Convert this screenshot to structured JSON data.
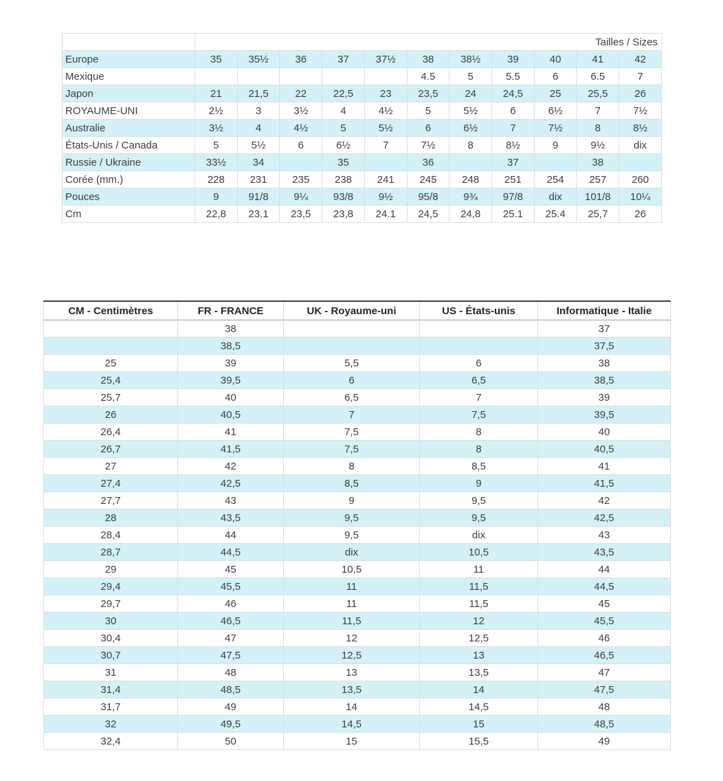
{
  "colors": {
    "stripe": "#d3f1f7",
    "grid": "#d9dfe0",
    "header_top_border": "#414141",
    "header_bottom_border": "#9e9e9e",
    "text": "#3d3d3d",
    "header_text": "#252525"
  },
  "top_table": {
    "title": "Tailles / Sizes",
    "rows": [
      {
        "label": "Europe",
        "values": [
          "35",
          "35½",
          "36",
          "37",
          "37½",
          "38",
          "38½",
          "39",
          "40",
          "41",
          "42"
        ]
      },
      {
        "label": "Mexique",
        "values": [
          "",
          "",
          "",
          "",
          "",
          "4.5",
          "5",
          "5.5",
          "6",
          "6.5",
          "7"
        ]
      },
      {
        "label": "Japon",
        "values": [
          "21",
          "21,5",
          "22",
          "22,5",
          "23",
          "23,5",
          "24",
          "24,5",
          "25",
          "25,5",
          "26"
        ]
      },
      {
        "label": "ROYAUME-UNI",
        "values": [
          "2½",
          "3",
          "3½",
          "4",
          "4½",
          "5",
          "5½",
          "6",
          "6½",
          "7",
          "7½"
        ]
      },
      {
        "label": "Australie",
        "values": [
          "3½",
          "4",
          "4½",
          "5",
          "5½",
          "6",
          "6½",
          "7",
          "7½",
          "8",
          "8½"
        ]
      },
      {
        "label": "États-Unis / Canada",
        "values": [
          "5",
          "5½",
          "6",
          "6½",
          "7",
          "7½",
          "8",
          "8½",
          "9",
          "9½",
          "dix"
        ]
      },
      {
        "label": "Russie / Ukraine",
        "values": [
          "33½",
          "34",
          "",
          "35",
          "",
          "36",
          "",
          "37",
          "",
          "38",
          ""
        ]
      },
      {
        "label": "Corée (mm.)",
        "values": [
          "228",
          "231",
          "235",
          "238",
          "241",
          "245",
          "248",
          "251",
          "254",
          "257",
          "260"
        ]
      },
      {
        "label": "Pouces",
        "values": [
          "9",
          "91/8",
          "9¼",
          "93/8",
          "9½",
          "95/8",
          "9¾",
          "97/8",
          "dix",
          "101/8",
          "10¼"
        ]
      },
      {
        "label": "Cm",
        "values": [
          "22,8",
          "23.1",
          "23,5",
          "23,8",
          "24.1",
          "24,5",
          "24,8",
          "25.1",
          "25.4",
          "25,7",
          "26"
        ]
      }
    ]
  },
  "bottom_table": {
    "headers": [
      "CM - Centimètres",
      "FR - FRANCE",
      "UK - Royaume-uni",
      "US - États-unis",
      "Informatique - Italie"
    ],
    "rows": [
      [
        "",
        "38",
        "",
        "",
        "37"
      ],
      [
        "",
        "38,5",
        "",
        "",
        "37,5"
      ],
      [
        "25",
        "39",
        "5,5",
        "6",
        "38"
      ],
      [
        "25,4",
        "39,5",
        "6",
        "6,5",
        "38,5"
      ],
      [
        "25,7",
        "40",
        "6,5",
        "7",
        "39"
      ],
      [
        "26",
        "40,5",
        "7",
        "7,5",
        "39,5"
      ],
      [
        "26,4",
        "41",
        "7,5",
        "8",
        "40"
      ],
      [
        "26,7",
        "41,5",
        "7,5",
        "8",
        "40,5"
      ],
      [
        "27",
        "42",
        "8",
        "8,5",
        "41"
      ],
      [
        "27,4",
        "42,5",
        "8,5",
        "9",
        "41,5"
      ],
      [
        "27,7",
        "43",
        "9",
        "9,5",
        "42"
      ],
      [
        "28",
        "43,5",
        "9,5",
        "9,5",
        "42,5"
      ],
      [
        "28,4",
        "44",
        "9,5",
        "dix",
        "43"
      ],
      [
        "28,7",
        "44,5",
        "dix",
        "10,5",
        "43,5"
      ],
      [
        "29",
        "45",
        "10,5",
        "11",
        "44"
      ],
      [
        "29,4",
        "45,5",
        "11",
        "11,5",
        "44,5"
      ],
      [
        "29,7",
        "46",
        "11",
        "11,5",
        "45"
      ],
      [
        "30",
        "46,5",
        "11,5",
        "12",
        "45,5"
      ],
      [
        "30,4",
        "47",
        "12",
        "12,5",
        "46"
      ],
      [
        "30,7",
        "47,5",
        "12,5",
        "13",
        "46,5"
      ],
      [
        "31",
        "48",
        "13",
        "13,5",
        "47"
      ],
      [
        "31,4",
        "48,5",
        "13,5",
        "14",
        "47,5"
      ],
      [
        "31,7",
        "49",
        "14",
        "14,5",
        "48"
      ],
      [
        "32",
        "49,5",
        "14,5",
        "15",
        "48,5"
      ],
      [
        "32,4",
        "50",
        "15",
        "15,5",
        "49"
      ]
    ]
  }
}
